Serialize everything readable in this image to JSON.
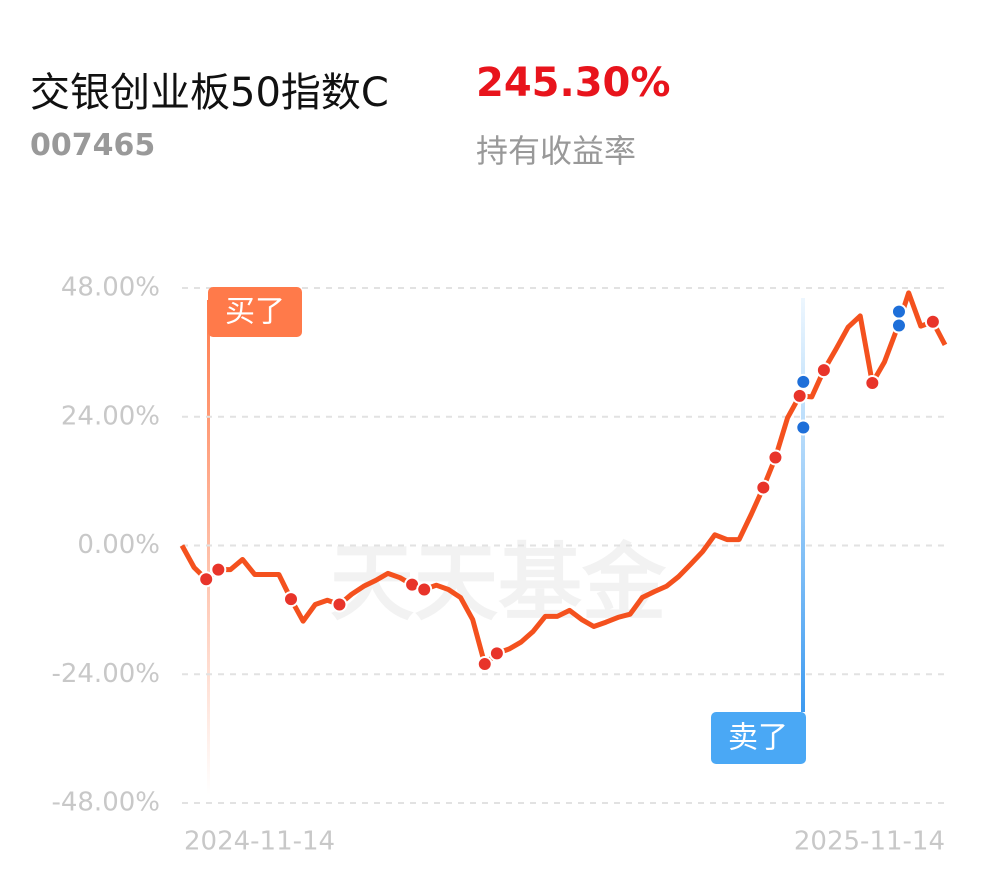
{
  "fund": {
    "name": "交银创业板50指数C",
    "holding_return": "245.30%",
    "code": "007465",
    "holding_return_label": "持有收益率"
  },
  "chart_data": {
    "type": "line",
    "watermark": "天天基金",
    "buy_label": "买了",
    "sell_label": "卖了",
    "categories": [
      "2024-11-14",
      null,
      null,
      null,
      null,
      null,
      null,
      null,
      null,
      null,
      null,
      null,
      null,
      null,
      null,
      null,
      null,
      null,
      null,
      null,
      null,
      null,
      null,
      null,
      null,
      null,
      null,
      null,
      null,
      null,
      null,
      null,
      null,
      null,
      null,
      null,
      null,
      null,
      null,
      null,
      null,
      null,
      null,
      null,
      null,
      null,
      null,
      null,
      null,
      null,
      null,
      null,
      null,
      null,
      null,
      null,
      null,
      null,
      null,
      null,
      null,
      null,
      null,
      "2025-11-14"
    ],
    "series": [
      {
        "color": "#f4511e",
        "values": [
          0,
          -4.1,
          -6.3,
          -4.5,
          -4.5,
          -2.6,
          -5.4,
          -5.4,
          -5.4,
          -10.0,
          -14.1,
          -11.0,
          -10.2,
          -11.0,
          -9.1,
          -7.6,
          -6.5,
          -5.2,
          -6.0,
          -7.3,
          -8.2,
          -7.4,
          -8.2,
          -9.7,
          -13.8,
          -22.1,
          -20.1,
          -19.3,
          -18.0,
          -16.0,
          -13.2,
          -13.2,
          -12.1,
          -13.8,
          -15.1,
          -14.3,
          -13.4,
          -12.8,
          -9.7,
          -8.6,
          -7.6,
          -5.8,
          -3.5,
          -1.1,
          2.0,
          1.1,
          1.1,
          5.8,
          10.8,
          16.4,
          23.8,
          27.9,
          27.7,
          32.7,
          36.6,
          40.7,
          42.8,
          30.3,
          34.2,
          40.2,
          47.1,
          40.9,
          41.7,
          37.4
        ]
      }
    ],
    "buy_points": [
      2,
      3,
      9,
      13,
      19,
      20,
      25,
      26,
      48,
      49,
      51,
      53,
      57,
      62
    ],
    "sell_points": [
      {
        "index": 51.3,
        "value": 30.5
      },
      {
        "index": 51.3,
        "value": 22.0
      },
      {
        "index": 59.2,
        "value": 43.6
      },
      {
        "index": 59.2,
        "value": 41.0
      }
    ],
    "ylim": [
      -48,
      48
    ],
    "yticks": [
      {
        "value": 48,
        "label": "48.00%"
      },
      {
        "value": 24,
        "label": "24.00%"
      },
      {
        "value": 0,
        "label": "0.00%"
      },
      {
        "value": -24,
        "label": "-24.00%"
      },
      {
        "value": -48,
        "label": "-48.00%"
      }
    ],
    "grid": true
  }
}
